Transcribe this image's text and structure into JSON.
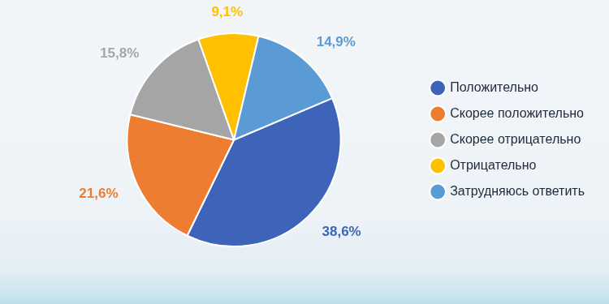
{
  "chart_data": {
    "type": "pie",
    "categories": [
      "Положительно",
      "Скорее положительно",
      "Скорее отрицательно",
      "Отрицательно",
      "Затрудняюсь ответить"
    ],
    "values": [
      38.6,
      21.6,
      15.8,
      9.1,
      14.9
    ],
    "value_labels": [
      "38,6%",
      "21,6%",
      "15,8%",
      "9,1%",
      "14,9%"
    ],
    "colors": [
      "#3d64b8",
      "#ed7d31",
      "#a5a5a5",
      "#ffc000",
      "#5b9bd5"
    ],
    "legend": "right",
    "data_labels": true
  }
}
